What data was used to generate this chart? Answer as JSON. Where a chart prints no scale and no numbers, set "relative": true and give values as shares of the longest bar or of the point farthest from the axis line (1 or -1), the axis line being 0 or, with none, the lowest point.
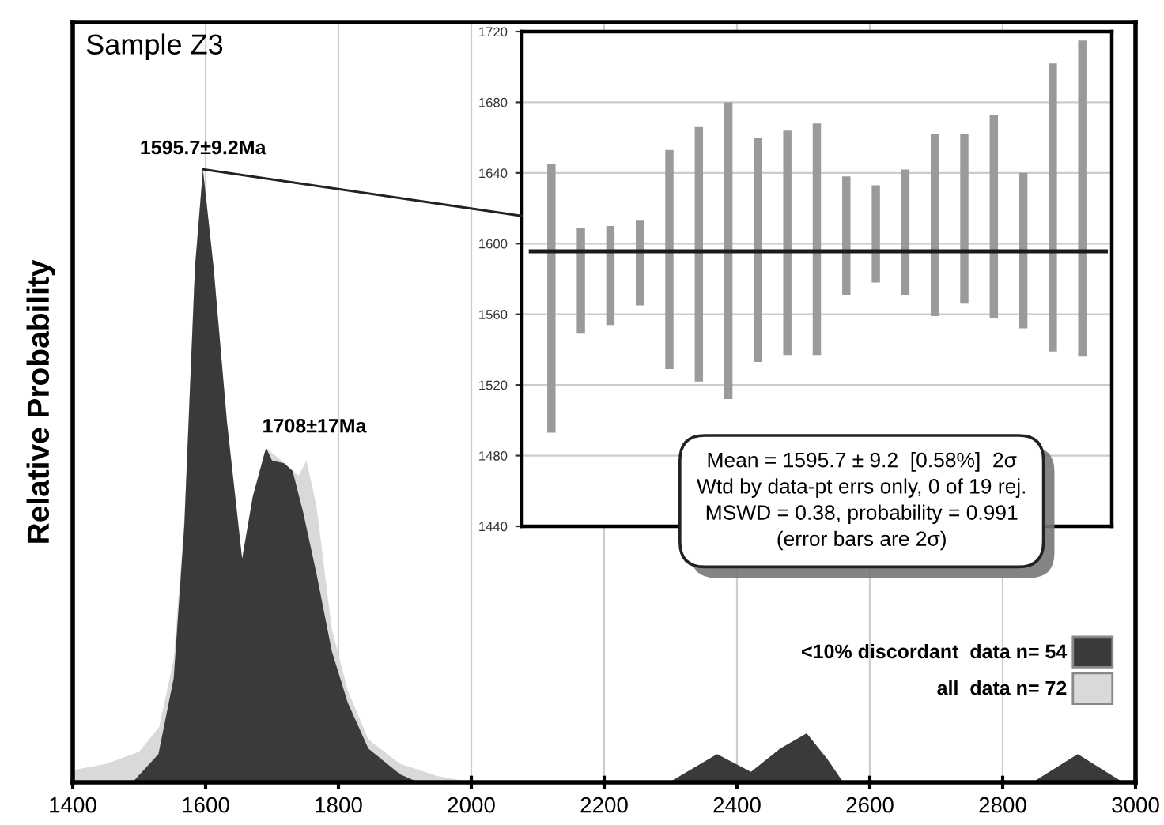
{
  "chart_data": [
    {
      "type": "area",
      "title": "Sample Z3",
      "ylabel": "Relative Probability",
      "relative": true,
      "xlim": [
        1400,
        3000
      ],
      "xticks": [
        1400,
        1600,
        1800,
        2000,
        2200,
        2400,
        2600,
        2800,
        3000
      ],
      "grid": "x",
      "legend": "bottom right",
      "series": [
        {
          "name": "all  data n= 72",
          "color": "#d9d9d9",
          "x": [
            1400,
            1450,
            1500,
            1530,
            1552,
            1568,
            1584,
            1596,
            1612,
            1632,
            1655,
            1671,
            1691,
            1719,
            1740,
            1752,
            1767,
            1790,
            1814,
            1845,
            1893,
            1950,
            2000
          ],
          "values": [
            0.02,
            0.03,
            0.05,
            0.09,
            0.2,
            0.43,
            0.84,
            1.0,
            0.84,
            0.59,
            null,
            0.466,
            0.546,
            0.52,
            0.5,
            0.525,
            0.45,
            0.25,
            0.15,
            0.07,
            0.03,
            0.01,
            0
          ]
        },
        {
          "name": "<10% discordant  data n= 54",
          "color": "#3a3a3c",
          "x": [
            1400,
            1490,
            1529,
            1552,
            1568,
            1584,
            1596,
            1612,
            1632,
            1655,
            1671,
            1691,
            1700,
            1719,
            1731,
            1747,
            1767,
            1790,
            1814,
            1845,
            1893,
            1920,
            2298,
            2370,
            2421,
            2465,
            2505,
            2536,
            2560,
            2845,
            2913,
            2981,
            3000
          ],
          "values": [
            0,
            0,
            0.046,
            0.17,
            0.42,
            0.84,
            1.0,
            0.84,
            0.59,
            0.365,
            0.466,
            0.546,
            0.525,
            0.52,
            0.508,
            0.44,
            0.34,
            0.214,
            0.13,
            0.055,
            0.013,
            0,
            0,
            0.046,
            0.017,
            0.055,
            0.08,
            0.038,
            0,
            0,
            0.046,
            0,
            0
          ]
        }
      ],
      "annotations": [
        {
          "text": "1595.7±9.2Ma",
          "x": 1596,
          "y": 1.0
        },
        {
          "text": "1708±17Ma",
          "x": 1691,
          "y": 0.546
        }
      ]
    },
    {
      "type": "bar",
      "categories": [
        null,
        null,
        null,
        null,
        null,
        null,
        null,
        null,
        null,
        null,
        null,
        null,
        null,
        null,
        null,
        null,
        null,
        null,
        null
      ],
      "base": [
        1493,
        1549,
        1554,
        1565,
        1529,
        1522,
        1512,
        1533,
        1537,
        1537,
        1571,
        1578,
        1571,
        1559,
        1566,
        1558,
        1552,
        1539,
        1536
      ],
      "values": [
        152,
        60,
        56,
        48,
        124,
        144,
        168,
        127,
        127,
        131,
        67,
        55,
        71,
        103,
        96,
        115,
        88,
        163,
        179
      ],
      "color": "#9a9a9c",
      "ylim": [
        1440,
        1720
      ],
      "yticks": [
        1440,
        1480,
        1520,
        1560,
        1600,
        1640,
        1680,
        1720
      ],
      "grid": "y",
      "ref_lines": [
        {
          "axis": "y",
          "value": 1595.7,
          "color": "#1a1a1a"
        }
      ],
      "annotations": [
        "Mean = 1595.7 ± 9.2  [0.58%]  2σ\nWtd by data-pt errs only, 0 of 19 rej.\nMSWD = 0.38, probability = 0.991\n(error bars are 2σ)"
      ]
    }
  ]
}
